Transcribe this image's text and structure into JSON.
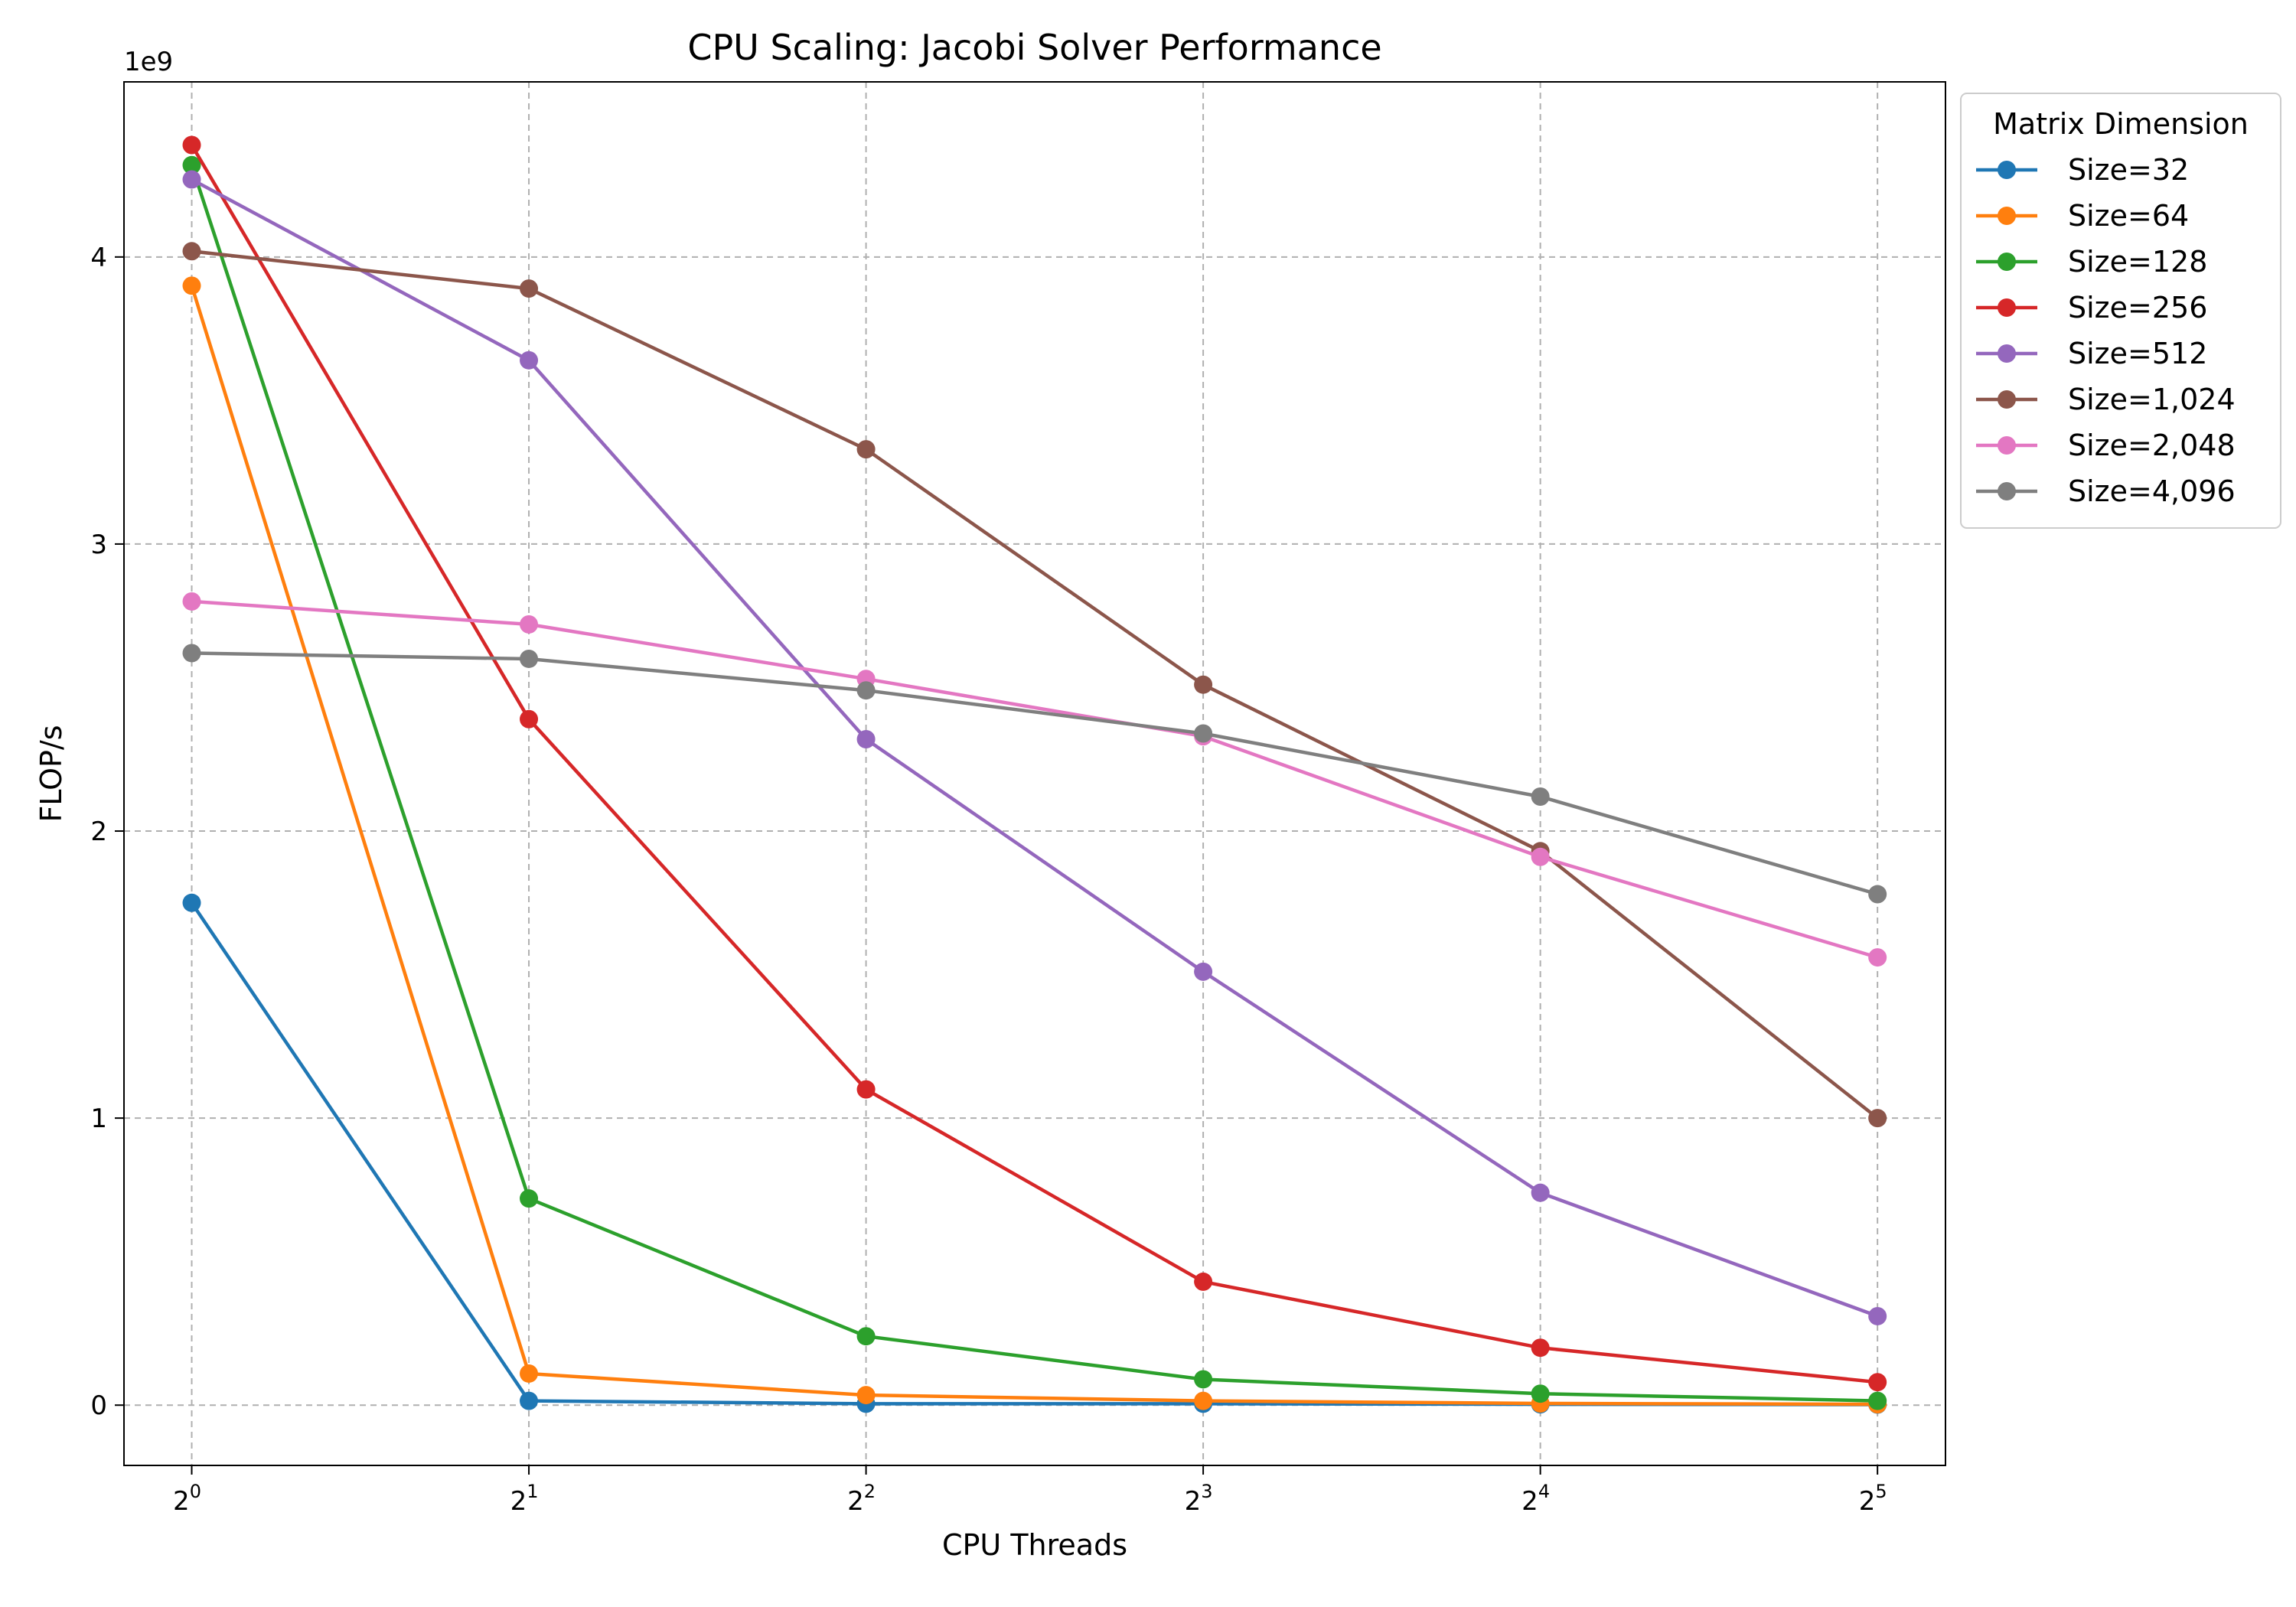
{
  "chart_data": {
    "type": "line",
    "title": "CPU Scaling: Jacobi Solver Performance",
    "xlabel": "CPU Threads",
    "ylabel": "FLOP/s",
    "y_offset_label": "1e9",
    "x_scale": "log2",
    "x": [
      1,
      2,
      4,
      8,
      16,
      32
    ],
    "x_tick_bases": [
      "2",
      "2",
      "2",
      "2",
      "2",
      "2"
    ],
    "x_tick_exponents": [
      "0",
      "1",
      "2",
      "3",
      "4",
      "5"
    ],
    "xlim": [
      0.87,
      36.8
    ],
    "ylim": [
      -0.21,
      4.61
    ],
    "y_ticks": [
      0,
      1,
      2,
      3,
      4
    ],
    "y_tick_labels": [
      "0",
      "1",
      "2",
      "3",
      "4"
    ],
    "grid": true,
    "legend_title": "Matrix Dimension",
    "legend_position": "outside-top-right",
    "series": [
      {
        "name": "Size=32",
        "color": "#1f77b4",
        "values": [
          1.75,
          0.015,
          0.005,
          0.005,
          0.003,
          0.002
        ]
      },
      {
        "name": "Size=64",
        "color": "#ff7f0e",
        "values": [
          3.9,
          0.11,
          0.035,
          0.015,
          0.006,
          0.003
        ]
      },
      {
        "name": "Size=128",
        "color": "#2ca02c",
        "values": [
          4.32,
          0.72,
          0.24,
          0.09,
          0.04,
          0.015
        ]
      },
      {
        "name": "Size=256",
        "color": "#d62728",
        "values": [
          4.39,
          2.39,
          1.1,
          0.43,
          0.2,
          0.08
        ]
      },
      {
        "name": "Size=512",
        "color": "#9467bd",
        "values": [
          4.27,
          3.64,
          2.32,
          1.51,
          0.74,
          0.31
        ]
      },
      {
        "name": "Size=1,024",
        "color": "#8c564b",
        "values": [
          4.02,
          3.89,
          3.33,
          2.51,
          1.93,
          1.0
        ]
      },
      {
        "name": "Size=2,048",
        "color": "#e377c2",
        "values": [
          2.8,
          2.72,
          2.53,
          2.33,
          1.91,
          1.56
        ]
      },
      {
        "name": "Size=4,096",
        "color": "#7f7f7f",
        "values": [
          2.62,
          2.6,
          2.49,
          2.34,
          2.12,
          1.78
        ]
      }
    ]
  }
}
